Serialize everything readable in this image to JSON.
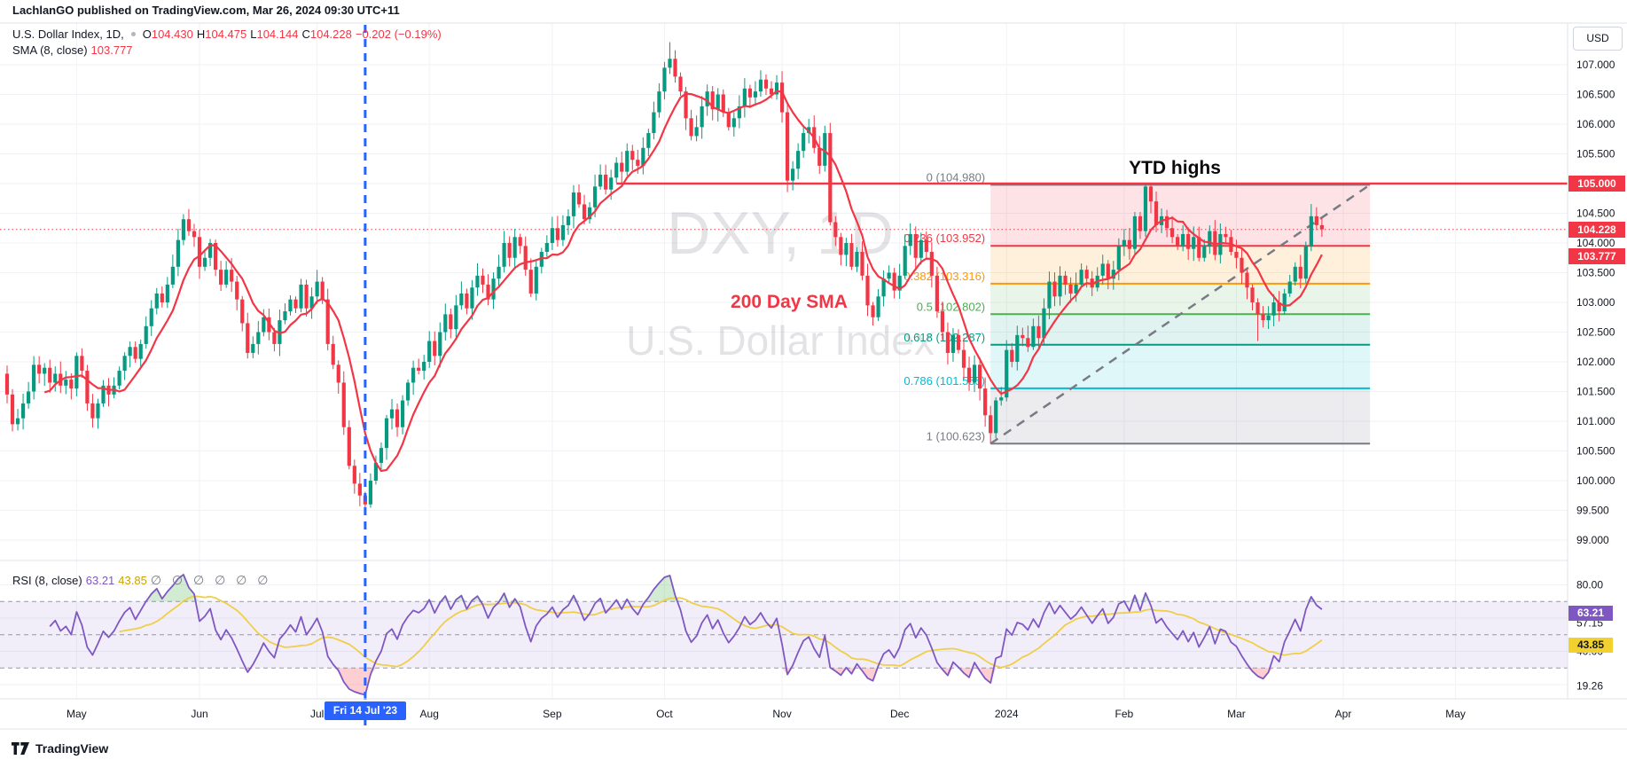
{
  "header": {
    "text": "LachlanGO published on TradingView.com, Mar 26, 2024 09:30 UTC+11"
  },
  "logo": {
    "text": "TradingView"
  },
  "legend": {
    "title": "U.S. Dollar Index, 1D,",
    "items": [
      {
        "k": "O",
        "v": "104.430"
      },
      {
        "k": "H",
        "v": "104.475"
      },
      {
        "k": "L",
        "v": "104.144"
      },
      {
        "k": "C",
        "v": "104.228"
      }
    ],
    "change": "−0.202 (−0.19%)",
    "sma_title": "SMA (8, close)",
    "sma_value": "103.777"
  },
  "rsi_legend": {
    "title": "RSI (8, close)",
    "value": "63.21",
    "ma_value": "43.85",
    "empties": "∅ ∅ ∅ ∅ ∅ ∅"
  },
  "watermark": {
    "line1": "DXY, 1D",
    "line2": "U.S. Dollar Index"
  },
  "annotations": {
    "ytd_highs": "YTD highs",
    "sma_label": "200 Day SMA"
  },
  "price_axis": {
    "currency_label": "USD",
    "badges": {
      "line": "105.000",
      "last": "104.228",
      "sma": "103.777"
    },
    "ticks": [
      {
        "t": "107.000",
        "v": 107.0
      },
      {
        "t": "106.500",
        "v": 106.5
      },
      {
        "t": "106.000",
        "v": 106.0
      },
      {
        "t": "105.500",
        "v": 105.5
      },
      {
        "t": "105.000",
        "v": 105.0
      },
      {
        "t": "104.500",
        "v": 104.5
      },
      {
        "t": "104.000",
        "v": 104.0
      },
      {
        "t": "103.500",
        "v": 103.5
      },
      {
        "t": "103.000",
        "v": 103.0
      },
      {
        "t": "102.500",
        "v": 102.5
      },
      {
        "t": "102.000",
        "v": 102.0
      },
      {
        "t": "101.500",
        "v": 101.5
      },
      {
        "t": "101.000",
        "v": 101.0
      },
      {
        "t": "100.500",
        "v": 100.5
      },
      {
        "t": "100.000",
        "v": 100.0
      },
      {
        "t": "99.500",
        "v": 99.5
      },
      {
        "t": "99.000",
        "v": 99.0
      }
    ]
  },
  "rsi_axis": {
    "badges": {
      "rsi": "63.21",
      "ma": "43.85"
    },
    "ticks": [
      {
        "t": "80.00",
        "v": 80.0
      },
      {
        "t": "57.15",
        "v": 57.15
      },
      {
        "t": "40.00",
        "v": 40.0
      },
      {
        "t": "19.26",
        "v": 19.26
      }
    ]
  },
  "time_axis": {
    "labels": [
      {
        "t": "May",
        "d": 13
      },
      {
        "t": "Jun",
        "d": 36
      },
      {
        "t": "Jul",
        "d": 58
      },
      {
        "t": "Aug",
        "d": 79
      },
      {
        "t": "Sep",
        "d": 102
      },
      {
        "t": "Oct",
        "d": 123
      },
      {
        "t": "Nov",
        "d": 145
      },
      {
        "t": "Dec",
        "d": 167
      },
      {
        "t": "2024",
        "d": 187
      },
      {
        "t": "Feb",
        "d": 209
      },
      {
        "t": "Mar",
        "d": 230
      },
      {
        "t": "Apr",
        "d": 250
      },
      {
        "t": "May",
        "d": 271
      }
    ],
    "event_badge": {
      "t": "Fri 14 Jul '23",
      "d": 67
    }
  },
  "chart_data": {
    "type": "candlestick",
    "title": "U.S. Dollar Index",
    "timeframe": "1D",
    "x_axis": "Apr 2023 – May 2024, daily bars",
    "y_range": [
      99.0,
      107.5
    ],
    "first_open": 101.8,
    "closes": [
      101.45,
      100.95,
      101.05,
      101.3,
      101.5,
      101.95,
      101.8,
      101.9,
      101.65,
      101.8,
      101.6,
      101.7,
      101.55,
      102.1,
      101.85,
      101.3,
      101.05,
      101.3,
      101.6,
      101.45,
      101.6,
      101.85,
      102.1,
      102.25,
      102.05,
      102.3,
      102.6,
      102.9,
      103.15,
      103.0,
      103.3,
      103.6,
      104.05,
      104.4,
      104.2,
      104.1,
      103.6,
      103.75,
      104.0,
      103.55,
      103.3,
      103.55,
      103.35,
      103.05,
      102.65,
      102.15,
      102.3,
      102.5,
      102.75,
      102.5,
      102.3,
      102.7,
      102.85,
      103.05,
      102.9,
      103.3,
      102.9,
      103.1,
      103.35,
      103.05,
      102.3,
      101.95,
      101.65,
      100.9,
      100.25,
      99.95,
      99.75,
      99.6,
      100.0,
      100.3,
      100.55,
      101.05,
      101.2,
      100.9,
      101.35,
      101.65,
      101.9,
      101.85,
      102.0,
      102.35,
      102.1,
      102.5,
      102.8,
      102.55,
      102.95,
      103.15,
      102.9,
      103.25,
      103.45,
      103.3,
      103.05,
      103.4,
      103.6,
      104.0,
      103.75,
      104.1,
      103.95,
      103.55,
      103.15,
      103.6,
      103.85,
      104.0,
      104.25,
      104.05,
      104.3,
      104.45,
      104.85,
      104.65,
      104.4,
      104.6,
      104.95,
      105.15,
      104.9,
      105.1,
      105.35,
      105.2,
      105.55,
      105.4,
      105.3,
      105.6,
      105.85,
      106.2,
      106.55,
      106.95,
      107.1,
      106.8,
      106.55,
      106.1,
      105.8,
      105.95,
      106.3,
      106.55,
      106.25,
      106.5,
      106.2,
      105.95,
      106.1,
      106.3,
      106.6,
      106.45,
      106.55,
      106.75,
      106.6,
      106.5,
      106.7,
      106.2,
      105.05,
      105.25,
      105.55,
      105.85,
      105.95,
      105.6,
      105.3,
      105.85,
      104.35,
      104.1,
      103.8,
      104.0,
      103.6,
      103.85,
      103.45,
      102.95,
      102.75,
      103.1,
      103.4,
      103.5,
      103.2,
      103.45,
      103.95,
      104.15,
      103.75,
      104.05,
      103.85,
      103.45,
      102.85,
      102.5,
      102.15,
      102.45,
      102.2,
      101.9,
      101.65,
      101.95,
      101.55,
      101.1,
      100.8,
      101.35,
      101.4,
      102.2,
      102.0,
      102.45,
      102.4,
      102.25,
      102.6,
      102.4,
      102.9,
      103.35,
      103.1,
      103.45,
      103.3,
      103.15,
      103.3,
      103.55,
      103.4,
      103.25,
      103.45,
      103.65,
      103.4,
      103.55,
      103.95,
      104.05,
      103.9,
      104.45,
      104.2,
      104.95,
      104.7,
      104.3,
      104.45,
      104.25,
      104.1,
      103.95,
      104.15,
      103.9,
      104.1,
      103.75,
      103.95,
      104.2,
      103.8,
      104.15,
      104.1,
      103.85,
      103.75,
      103.5,
      103.25,
      103.0,
      102.8,
      102.7,
      102.78,
      103.0,
      102.85,
      103.15,
      103.35,
      103.6,
      103.4,
      103.95,
      104.45,
      104.3,
      104.23
    ],
    "wick_extremes": {
      "67": {
        "low": 99.49
      },
      "124": {
        "high": 107.38
      },
      "184": {
        "low": 100.62
      },
      "213": {
        "high": 104.98
      },
      "234": {
        "low": 102.35
      }
    },
    "sma_period": 8,
    "rsi": {
      "period": 8,
      "ma_period": 14,
      "bands": [
        70,
        50,
        30
      ],
      "last": 63.21,
      "ma_last": 43.85
    },
    "fib": {
      "x1_day": 184,
      "x2_day": 255,
      "levels": [
        {
          "r": "0",
          "p": "104.980",
          "v": 104.98,
          "c": "#787B86",
          "label": "0 (104.980)"
        },
        {
          "r": "0.236",
          "p": "103.952",
          "v": 103.952,
          "c": "#F23645",
          "label": "0.236 (103.952)"
        },
        {
          "r": "0.382",
          "p": "103.316",
          "v": 103.316,
          "c": "#FF9800",
          "label": "0.382 (103.316)"
        },
        {
          "r": "0.5",
          "p": "102.802",
          "v": 102.802,
          "c": "#4CAF50",
          "label": "0.5 (102.802)"
        },
        {
          "r": "0.618",
          "p": "102.287",
          "v": 102.287,
          "c": "#089981",
          "label": "0.618 (102.287)"
        },
        {
          "r": "0.786",
          "p": "101.555",
          "v": 101.555,
          "c": "#00BCD4",
          "label": "0.786 (101.555)"
        },
        {
          "r": "1",
          "p": "100.623",
          "v": 100.623,
          "c": "#787B86",
          "label": "1 (100.623)"
        }
      ]
    },
    "level_line": {
      "price": 105.0,
      "start_day": 114
    },
    "last_price_line": 104.228,
    "event_line_day": 67,
    "colors": {
      "up": "#089981",
      "down": "#F23645",
      "sma": "#F23645",
      "rsi": "#7E57C2",
      "rsi_ma": "#EFCE4A",
      "blue": "#2962FF",
      "grid": "#F0F2F6",
      "border": "#E0E3EB",
      "axis_text": "#131722",
      "band_fill": "rgba(126,87,194,0.10)",
      "ob_fill": "rgba(76,175,80,0.25)",
      "os_fill": "rgba(247,82,95,0.28)",
      "fib_fills": [
        "rgba(242,54,69,0.14)",
        "rgba(255,152,0,0.14)",
        "rgba(76,175,80,0.13)",
        "rgba(8,153,129,0.12)",
        "rgba(0,188,212,0.12)",
        "rgba(120,123,134,0.14)"
      ]
    }
  }
}
